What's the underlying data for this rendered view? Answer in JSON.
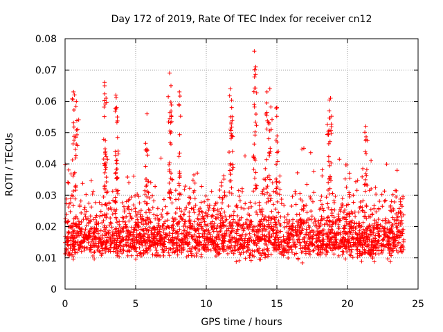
{
  "chart_data": {
    "type": "scatter",
    "title": "Day 172 of 2019, Rate Of TEC Index for receiver cn12",
    "xlabel": "GPS time / hours",
    "ylabel": "ROTI / TECUs",
    "xlim": [
      0,
      25
    ],
    "ylim": [
      0,
      0.08
    ],
    "x_ticks": [
      0,
      5,
      10,
      15,
      20,
      25
    ],
    "x_tick_labels": [
      "0",
      "5",
      "10",
      "15",
      "20",
      "25"
    ],
    "y_ticks": [
      0,
      0.01,
      0.02,
      0.03,
      0.04,
      0.05,
      0.06,
      0.07,
      0.08
    ],
    "y_tick_labels": [
      "0",
      "0.01",
      "0.02",
      "0.03",
      "0.04",
      "0.05",
      "0.06",
      "0.07",
      "0.08"
    ],
    "grid": true,
    "marker": "+",
    "series": [
      {
        "color": "#ff0000",
        "x_range": [
          0,
          24
        ],
        "typical_range": [
          0.005,
          0.03
        ],
        "peaks": [
          {
            "x": 0.6,
            "y": 0.063
          },
          {
            "x": 0.8,
            "y": 0.06
          },
          {
            "x": 2.8,
            "y": 0.066
          },
          {
            "x": 2.9,
            "y": 0.061
          },
          {
            "x": 3.6,
            "y": 0.062
          },
          {
            "x": 3.7,
            "y": 0.055
          },
          {
            "x": 5.8,
            "y": 0.056
          },
          {
            "x": 7.4,
            "y": 0.069
          },
          {
            "x": 7.5,
            "y": 0.065
          },
          {
            "x": 8.1,
            "y": 0.063
          },
          {
            "x": 11.7,
            "y": 0.064
          },
          {
            "x": 11.8,
            "y": 0.058
          },
          {
            "x": 13.4,
            "y": 0.076
          },
          {
            "x": 13.5,
            "y": 0.071
          },
          {
            "x": 14.5,
            "y": 0.064
          },
          {
            "x": 14.3,
            "y": 0.063
          },
          {
            "x": 15.0,
            "y": 0.058
          },
          {
            "x": 18.8,
            "y": 0.061
          },
          {
            "x": 18.7,
            "y": 0.057
          },
          {
            "x": 21.3,
            "y": 0.052
          }
        ]
      }
    ]
  }
}
